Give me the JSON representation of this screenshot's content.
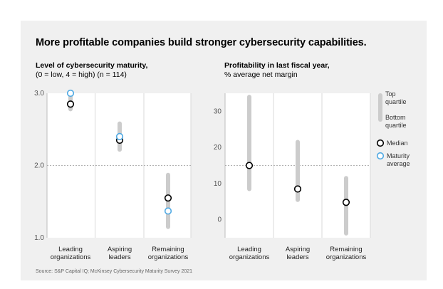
{
  "title": "More profitable companies build stronger cybersecurity capabilities.",
  "source": "Source: S&P Capital IQ; McKinsey Cybersecurity Maturity Survey 2021",
  "colors": {
    "background": "#f0f0f0",
    "plot_bg": "#ffffff",
    "range_bar": "#cccccc",
    "median": "#000000",
    "maturity_avg": "#4fa9e3",
    "grid": "#d9d9d9",
    "reference_line": "#999999"
  },
  "legend": {
    "range_top": [
      "Top",
      "quartile"
    ],
    "range_bottom": [
      "Bottom",
      "quartile"
    ],
    "median": "Median",
    "average": [
      "Maturity",
      "average"
    ]
  },
  "chart_data": [
    {
      "type": "range-dot",
      "title_bold": "Level of cybersecurity maturity,",
      "subtitle": "(0 = low, 4 = high) (n = 114)",
      "categories": [
        [
          "Leading",
          "organizations"
        ],
        [
          "Aspiring",
          "leaders"
        ],
        [
          "Remaining",
          "organizations"
        ]
      ],
      "ylim": [
        1.0,
        3.0
      ],
      "yticks": [
        1.0,
        2.0,
        3.0
      ],
      "ytick_labels": [
        "1.0",
        "2.0",
        "3.0"
      ],
      "reference_line": 2.0,
      "range_low": [
        2.78,
        2.22,
        1.15
      ],
      "range_high": [
        3.0,
        2.58,
        1.87
      ],
      "median": [
        2.85,
        2.35,
        1.55
      ],
      "average": [
        3.0,
        2.4,
        1.37
      ]
    },
    {
      "type": "range-dot",
      "title_bold": "Profitability in last fiscal year,",
      "subtitle": "% average net margin",
      "categories": [
        [
          "Leading",
          "organizations"
        ],
        [
          "Aspiring",
          "leaders"
        ],
        [
          "Remaining",
          "organizations"
        ]
      ],
      "ylim": [
        -5,
        35
      ],
      "yticks": [
        0,
        10,
        20,
        30
      ],
      "ytick_labels": [
        "0",
        "10",
        "20",
        "30"
      ],
      "reference_line": 15,
      "range_low": [
        8.5,
        5.5,
        -3.8
      ],
      "range_high": [
        34.0,
        21.5,
        11.5
      ],
      "median": [
        15,
        8.5,
        4.8
      ],
      "average": null
    }
  ]
}
